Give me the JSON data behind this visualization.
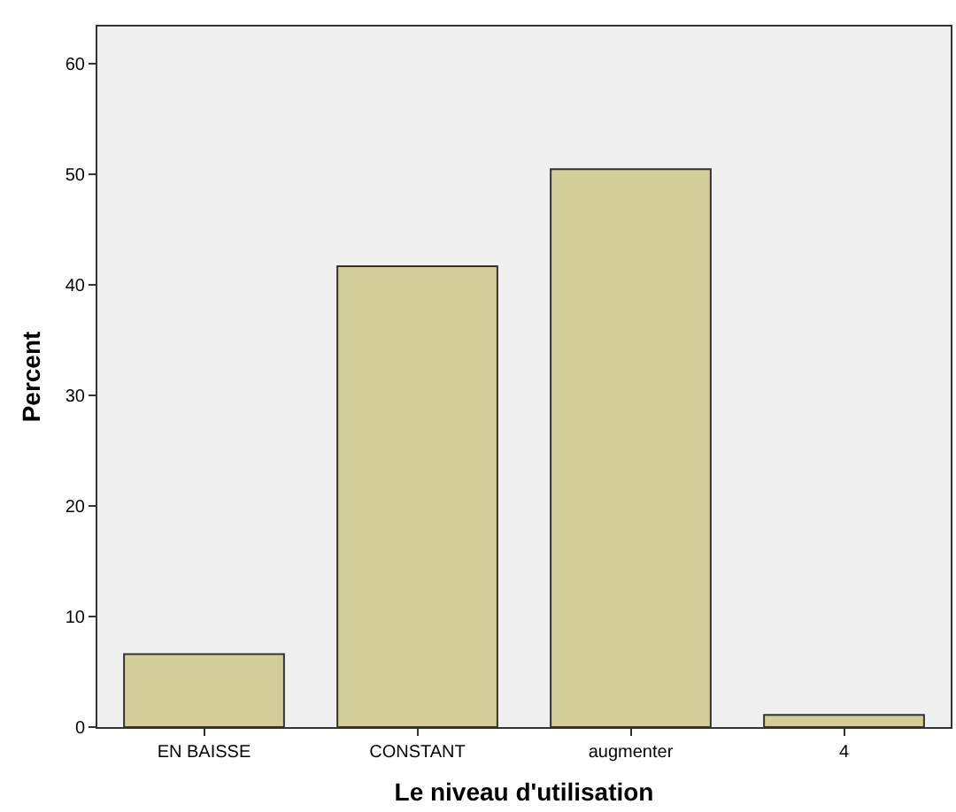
{
  "chart_data": {
    "type": "bar",
    "xlabel": "Le niveau d'utilisation",
    "ylabel": "Percent",
    "categories": [
      "EN BAISSE",
      "CONSTANT",
      "augmenter",
      "4"
    ],
    "values": [
      6.6,
      41.7,
      50.5,
      1.1
    ],
    "color": "#d3ce97",
    "ylim": [
      0,
      63.4
    ],
    "yticks": [
      0,
      10,
      20,
      30,
      40,
      50,
      60
    ],
    "grid": false
  }
}
